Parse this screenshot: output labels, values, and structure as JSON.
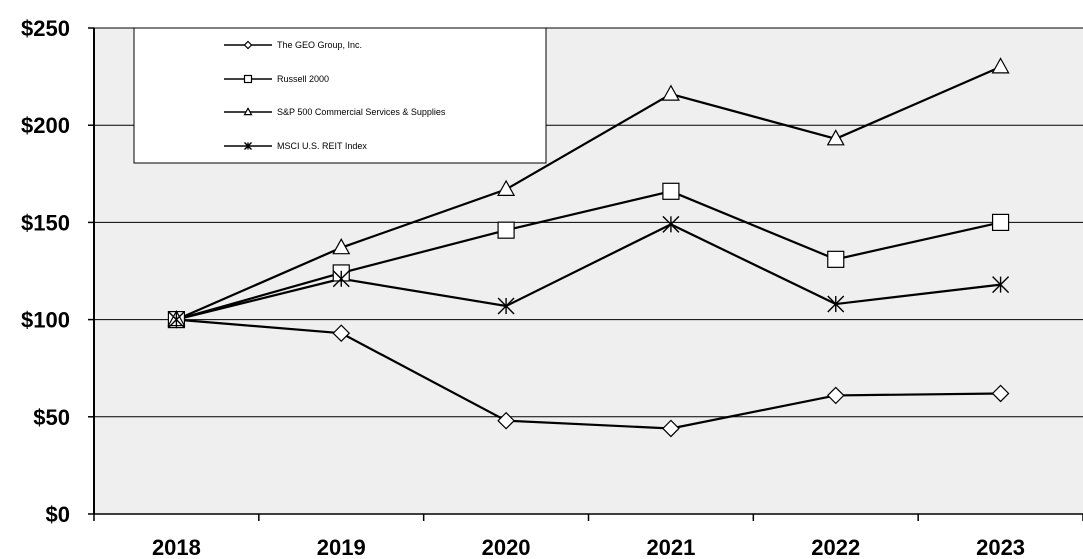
{
  "chart_data": {
    "type": "line",
    "title": "",
    "xlabel": "",
    "ylabel": "",
    "categories": [
      "2018",
      "2019",
      "2020",
      "2021",
      "2022",
      "2023"
    ],
    "y_tick_labels": [
      "$0",
      "$50",
      "$100",
      "$150",
      "$200",
      "$250"
    ],
    "y_tick_values": [
      0,
      50,
      100,
      150,
      200,
      250
    ],
    "ylim": [
      0,
      250
    ],
    "grid": "horizontal",
    "legend_position": "top-left",
    "plot_background": "#efefef",
    "line_color": "#000000",
    "series": [
      {
        "name": "The GEO Group, Inc.",
        "marker": "diamond",
        "values": [
          100,
          93,
          48,
          44,
          61,
          62
        ]
      },
      {
        "name": "Russell 2000",
        "marker": "square",
        "values": [
          100,
          124,
          146,
          166,
          131,
          150
        ]
      },
      {
        "name": "S&P 500 Commercial Services & Supplies",
        "marker": "triangle",
        "values": [
          100,
          137,
          167,
          216,
          193,
          230
        ]
      },
      {
        "name": "MSCI U.S. REIT Index",
        "marker": "star",
        "values": [
          100,
          121,
          107,
          149,
          108,
          118
        ]
      }
    ]
  }
}
